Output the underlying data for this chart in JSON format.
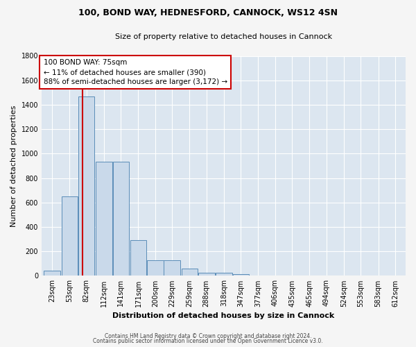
{
  "title_line1": "100, BOND WAY, HEDNESFORD, CANNOCK, WS12 4SN",
  "title_line2": "Size of property relative to detached houses in Cannock",
  "xlabel": "Distribution of detached houses by size in Cannock",
  "ylabel": "Number of detached properties",
  "footer_line1": "Contains HM Land Registry data © Crown copyright and database right 2024.",
  "footer_line2": "Contains public sector information licensed under the Open Government Licence v3.0.",
  "annotation_line1": "100 BOND WAY: 75sqm",
  "annotation_line2": "← 11% of detached houses are smaller (390)",
  "annotation_line3": "88% of semi-detached houses are larger (3,172) →",
  "property_size": 75,
  "bar_centers": [
    23,
    53,
    82,
    112,
    141,
    171,
    200,
    229,
    259,
    288,
    318,
    347,
    377,
    406,
    435,
    465,
    494,
    524,
    553,
    583,
    612
  ],
  "bar_values": [
    40,
    650,
    1470,
    935,
    935,
    290,
    130,
    130,
    60,
    25,
    25,
    15,
    5,
    2,
    0,
    0,
    0,
    0,
    0,
    0,
    0
  ],
  "bin_width": 29,
  "bar_color": "#c9d9ea",
  "bar_edge_color": "#5b8db8",
  "marker_line_color": "#cc0000",
  "annotation_box_color": "#cc0000",
  "plot_bg_color": "#dce6f0",
  "figure_bg_color": "#f5f5f5",
  "grid_color": "#ffffff",
  "ylim": [
    0,
    1800
  ],
  "yticks": [
    0,
    200,
    400,
    600,
    800,
    1000,
    1200,
    1400,
    1600,
    1800
  ],
  "xlim": [
    5,
    630
  ],
  "xtick_labels": [
    "23sqm",
    "53sqm",
    "82sqm",
    "112sqm",
    "141sqm",
    "171sqm",
    "200sqm",
    "229sqm",
    "259sqm",
    "288sqm",
    "318sqm",
    "347sqm",
    "377sqm",
    "406sqm",
    "435sqm",
    "465sqm",
    "494sqm",
    "524sqm",
    "553sqm",
    "583sqm",
    "612sqm"
  ],
  "title1_fontsize": 9,
  "title2_fontsize": 8,
  "ylabel_fontsize": 8,
  "xlabel_fontsize": 8,
  "tick_fontsize": 7,
  "ann_fontsize": 7.5,
  "footer_fontsize": 5.5
}
